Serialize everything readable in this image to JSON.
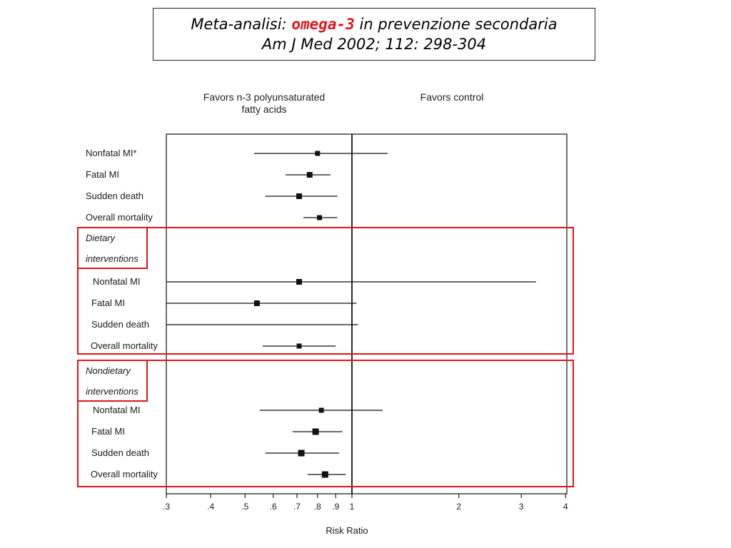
{
  "title": {
    "prefix": "Meta-analisi:",
    "highlight": "omega-3",
    "suffix": "in prevenzione secondaria",
    "citation": "Am J Med 2002; 112: 298-304"
  },
  "colors": {
    "accent": "#e0141c",
    "marks": "#111111"
  },
  "chart_data": {
    "type": "forest",
    "xscale": "log",
    "xlim": [
      0.3,
      4
    ],
    "reference_line": 1,
    "header_left": [
      "Favors n-3 polyunsaturated",
      "fatty acids"
    ],
    "header_right": "Favors control",
    "xlabel": "Risk Ratio",
    "tick_values": [
      0.3,
      0.4,
      0.5,
      0.6,
      0.7,
      0.8,
      0.9,
      1,
      2,
      3,
      4
    ],
    "tick_labels": [
      ".3",
      ".4",
      ".5",
      ".6",
      ".7",
      ".8",
      ".9",
      "1",
      "2",
      "3",
      "4"
    ],
    "groups": [
      {
        "name": "",
        "rows": [
          {
            "label": "Nonfatal MI*",
            "estimate": 0.8,
            "lower": 0.53,
            "upper": 1.26
          },
          {
            "label": "Fatal MI",
            "estimate": 0.76,
            "lower": 0.65,
            "upper": 0.87
          },
          {
            "label": "Sudden death",
            "estimate": 0.71,
            "lower": 0.57,
            "upper": 0.91
          },
          {
            "label": "Overall mortality",
            "estimate": 0.81,
            "lower": 0.73,
            "upper": 0.91
          }
        ]
      },
      {
        "name": [
          "Dietary",
          "interventions"
        ],
        "rows": [
          {
            "label": "Nonfatal MI",
            "estimate": 0.71,
            "lower": 0.3,
            "upper": 3.3
          },
          {
            "label": "Fatal MI",
            "estimate": 0.54,
            "lower": 0.3,
            "upper": 1.03
          },
          {
            "label": "Sudden death",
            "estimate": null,
            "lower": 0.3,
            "upper": 1.04
          },
          {
            "label": "Overall mortality",
            "estimate": 0.71,
            "lower": 0.56,
            "upper": 0.9
          }
        ]
      },
      {
        "name": [
          "Nondietary",
          "interventions"
        ],
        "rows": [
          {
            "label": "Nonfatal MI",
            "estimate": 0.82,
            "lower": 0.55,
            "upper": 1.22
          },
          {
            "label": "Fatal MI",
            "estimate": 0.79,
            "lower": 0.68,
            "upper": 0.94
          },
          {
            "label": "Sudden death",
            "estimate": 0.72,
            "lower": 0.57,
            "upper": 0.92
          },
          {
            "label": "Overall mortality",
            "estimate": 0.84,
            "lower": 0.75,
            "upper": 0.96
          }
        ]
      }
    ]
  }
}
